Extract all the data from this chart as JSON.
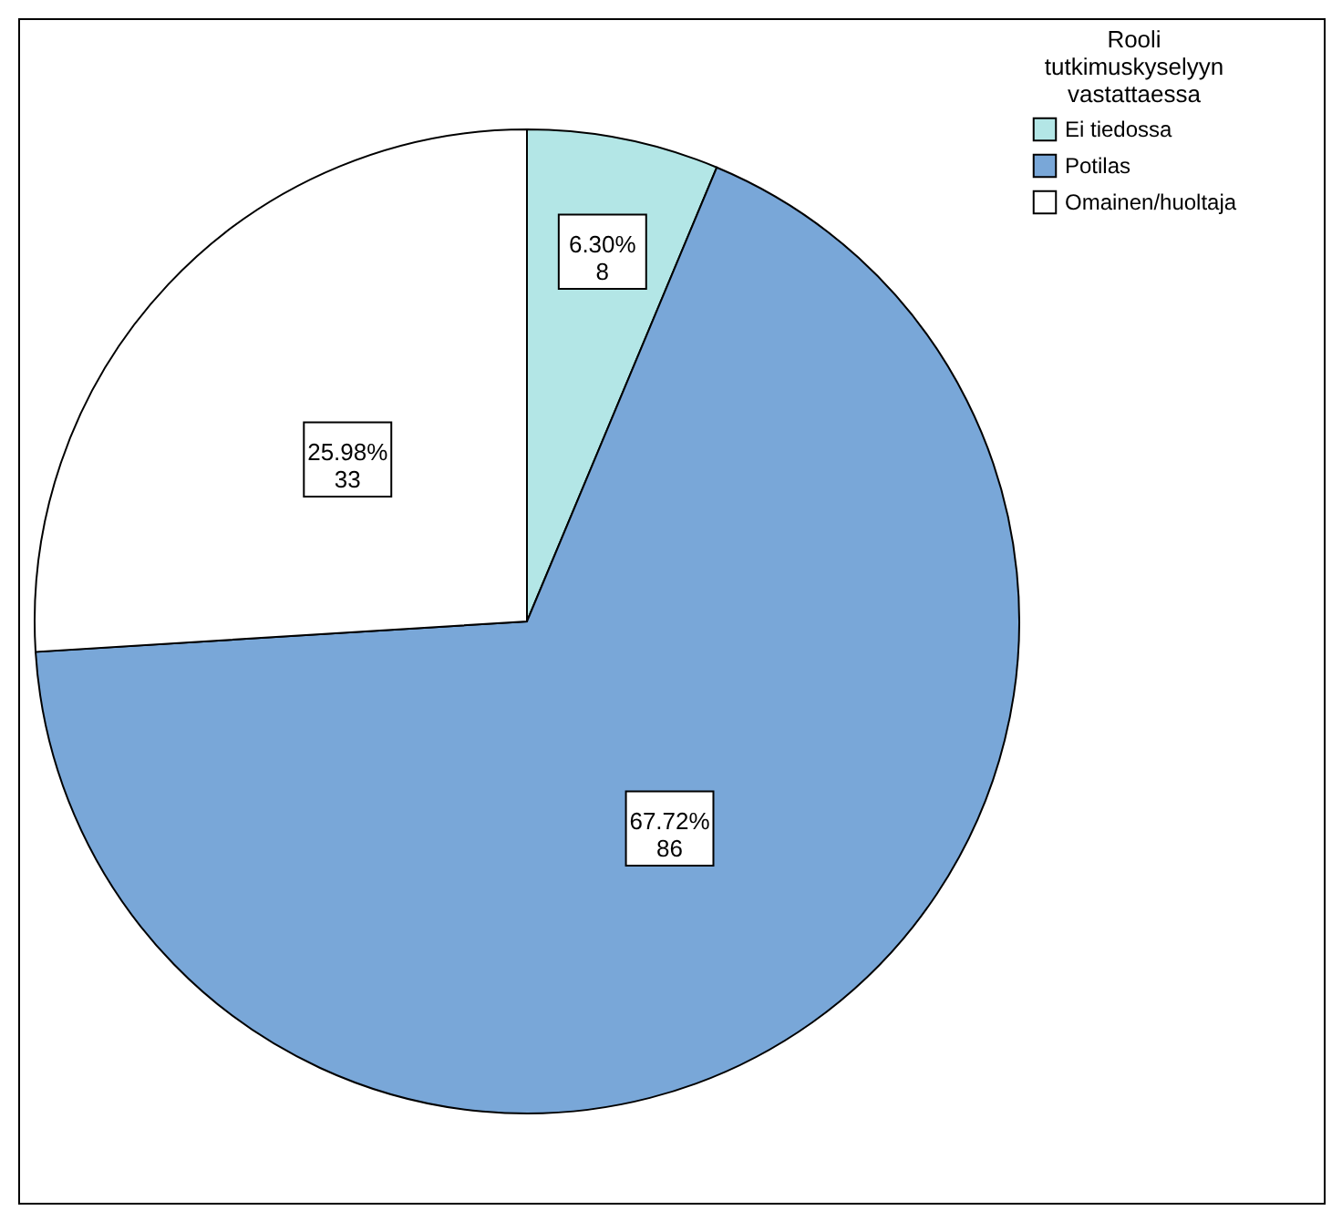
{
  "chart_data": {
    "type": "pie",
    "categories": [
      "Ei tiedossa",
      "Potilas",
      "Omainen/huoltaja"
    ],
    "values": [
      8,
      86,
      33
    ],
    "colors": [
      "#b3e6e6",
      "#79a7d8",
      "#ffffff"
    ],
    "value_labels": [
      "6.30%\n8",
      "67.72%\n86",
      "25.98%\n33"
    ],
    "legend_title": "Rooli tutkimuskyselyyn vastattaessa",
    "legend": "top right"
  }
}
